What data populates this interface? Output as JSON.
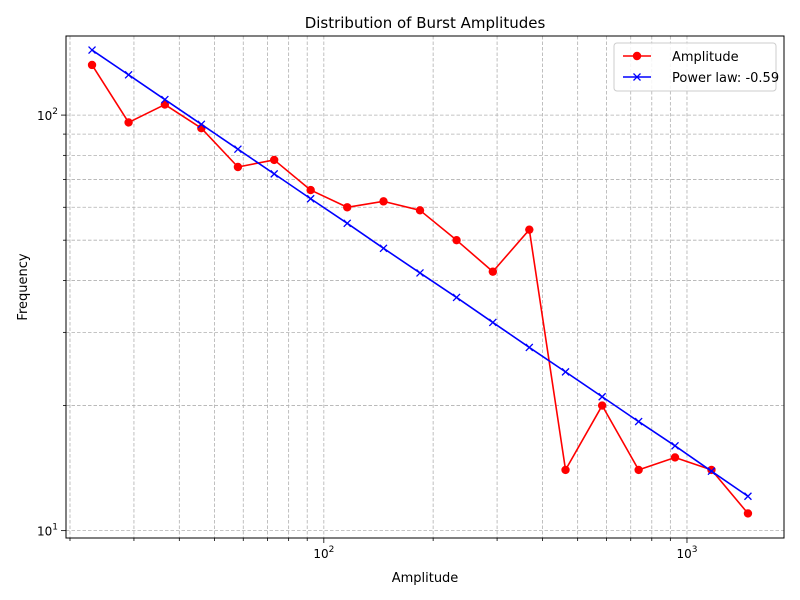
{
  "chart_data": {
    "type": "line",
    "title": "Distribution of Burst Amplitudes",
    "xlabel": "Amplitude",
    "ylabel": "Frequency",
    "xscale": "log",
    "yscale": "log",
    "xlim": [
      19.5,
      1850
    ],
    "ylim": [
      9.6,
      155
    ],
    "grid": "both-major-minor-dashed",
    "legend_position": "top-right",
    "x_major_ticks": [
      {
        "value": 100,
        "base": "10",
        "exp": "2"
      },
      {
        "value": 1000,
        "base": "10",
        "exp": "3"
      }
    ],
    "y_major_ticks": [
      {
        "value": 10,
        "base": "10",
        "exp": "1"
      },
      {
        "value": 100,
        "base": "10",
        "exp": "2"
      }
    ],
    "series": [
      {
        "name": "Amplitude",
        "color": "#ff0000",
        "marker": "circle",
        "x": [
          23.0,
          29.0,
          36.5,
          46.0,
          58.0,
          73.0,
          92.0,
          116.0,
          146.0,
          184.0,
          232.0,
          292.0,
          368.0,
          463.0,
          584.0,
          736.0,
          927.0,
          1168.0,
          1472.0
        ],
        "y": [
          132,
          96,
          106,
          93,
          75,
          78,
          66,
          60,
          62,
          59,
          50,
          42,
          53,
          14,
          20,
          14,
          15,
          14,
          11
        ]
      },
      {
        "name": "Power law: -0.59",
        "color": "#0000ff",
        "marker": "x",
        "x": [
          23.0,
          29.0,
          36.5,
          46.0,
          58.0,
          73.0,
          92.0,
          116.0,
          146.0,
          184.0,
          232.0,
          292.0,
          368.0,
          463.0,
          584.0,
          736.0,
          927.0,
          1168.0,
          1472.0
        ],
        "y": [
          143.4,
          125.0,
          109.0,
          95.0,
          82.8,
          72.2,
          62.9,
          54.9,
          47.8,
          41.7,
          36.4,
          31.7,
          27.6,
          24.1,
          21.0,
          18.3,
          16.0,
          13.9,
          12.1
        ]
      }
    ]
  }
}
